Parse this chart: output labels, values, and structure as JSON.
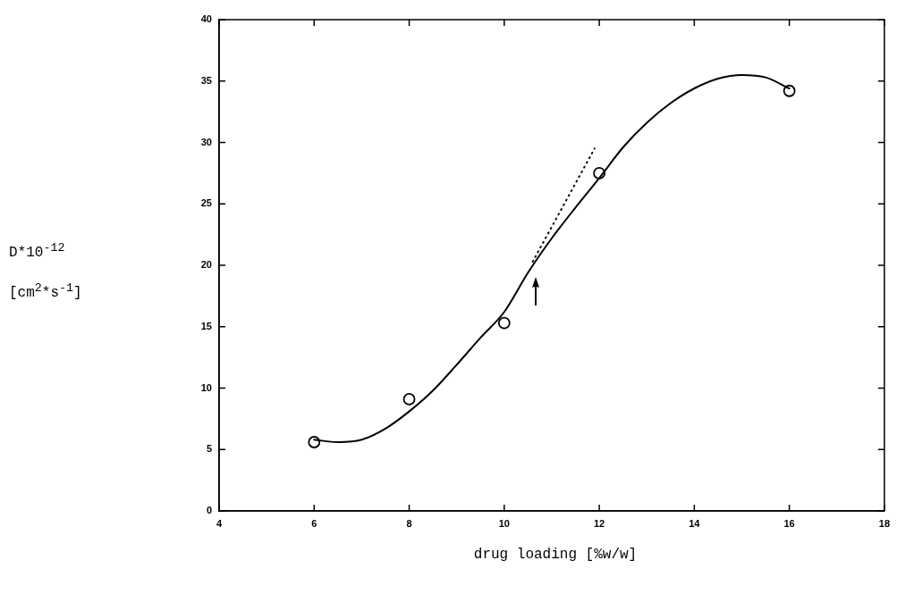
{
  "chart_data": {
    "type": "scatter",
    "xlabel": "drug loading [%w/w]",
    "ylabel": "D*10$^{-12}$\n[cm$^{2}$*s$^{-1}$]",
    "xlim": [
      4,
      18
    ],
    "xticks": [
      4,
      6,
      8,
      10,
      12,
      14,
      16,
      18
    ],
    "ylim": [
      0,
      40
    ],
    "yticks": [
      0,
      5,
      10,
      15,
      20,
      25,
      30,
      35,
      40
    ],
    "grid": false,
    "legend": false,
    "series": [
      {
        "type": "scatter",
        "color": "#000000",
        "marker": "circle",
        "x": [
          6,
          8,
          10,
          12,
          16
        ],
        "values": [
          5.6,
          9.1,
          15.3,
          27.5,
          34.2
        ]
      },
      {
        "type": "line",
        "color": "#000000",
        "marker": "none",
        "line_style": "solid",
        "x": [
          6,
          6.5,
          7,
          7.5,
          8,
          8.5,
          9,
          9.5,
          10,
          10.5,
          11,
          11.5,
          12,
          12.5,
          13,
          13.5,
          14,
          14.5,
          15,
          15.5,
          16
        ],
        "values": [
          5.8,
          5.6,
          5.8,
          6.7,
          8.1,
          9.8,
          11.9,
          14.1,
          16.2,
          19.4,
          22.2,
          24.7,
          27.1,
          29.6,
          31.6,
          33.2,
          34.4,
          35.2,
          35.5,
          35.3,
          34.4
        ]
      },
      {
        "type": "line",
        "color": "#000000",
        "marker": "none",
        "line_style": "dotted",
        "x": [
          10.6,
          11.9
        ],
        "values": [
          20.3,
          29.5
        ]
      }
    ]
  }
}
